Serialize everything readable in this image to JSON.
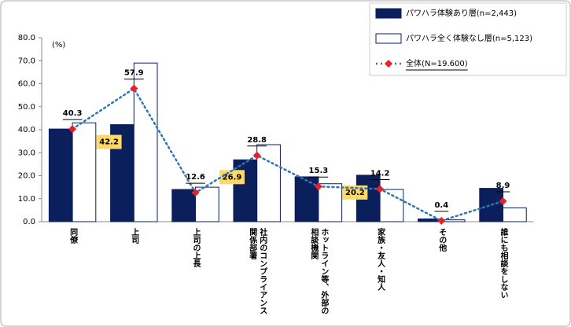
{
  "chart_data": {
    "type": "bar",
    "unit": "(%)",
    "categories": [
      "同僚",
      "上司",
      "上司の上長",
      "社内のコンプライアンス関係部署",
      "ホットライン等、外部の相談機関",
      "家族・友人・知人",
      "その他",
      "誰にも相談をしない"
    ],
    "series": [
      {
        "name": "パワハラ体験あり層(n=2,443)",
        "type": "bar",
        "color": "#0a1f5c",
        "values": [
          40.3,
          42.2,
          14.0,
          26.9,
          19.5,
          20.2,
          1.2,
          14.5
        ],
        "value_labels": [
          null,
          "42.2",
          null,
          "26.9",
          null,
          "20.2",
          null,
          null
        ]
      },
      {
        "name": "パワハラ全く体験なし層(n=5,123)",
        "type": "bar",
        "color": "#ffffff",
        "values": [
          43.0,
          69.0,
          15.0,
          33.5,
          16.5,
          14.0,
          0.8,
          6.0
        ]
      },
      {
        "name": "全体(N=19.600)",
        "type": "line",
        "color": "#2e75b6",
        "marker_color": "#e8202a",
        "values": [
          40.3,
          57.9,
          12.6,
          28.8,
          15.3,
          14.2,
          0.4,
          8.9
        ]
      }
    ],
    "ylim": [
      0,
      80
    ],
    "yticks": [
      {
        "value": 0,
        "label": "0.0"
      },
      {
        "value": 10,
        "label": "10.0"
      },
      {
        "value": 20,
        "label": "20.0"
      },
      {
        "value": 30,
        "label": "30.0"
      },
      {
        "value": 40,
        "label": "40.0"
      },
      {
        "value": 50,
        "label": "50.0"
      },
      {
        "value": 60,
        "label": "60.0"
      },
      {
        "value": 70,
        "label": "70.0"
      },
      {
        "value": 80,
        "label": "80.0"
      }
    ],
    "grid": false,
    "legend": "top-right"
  }
}
